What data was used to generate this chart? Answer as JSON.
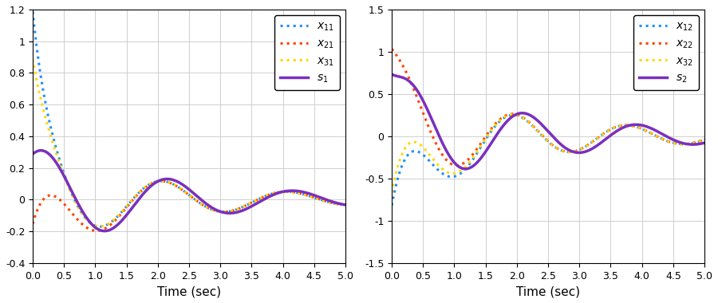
{
  "plot1": {
    "xlabel": "Time (sec)",
    "xlim": [
      0,
      5
    ],
    "ylim": [
      -0.4,
      1.2
    ],
    "yticks": [
      -0.4,
      -0.2,
      0,
      0.2,
      0.4,
      0.6,
      0.8,
      1.0,
      1.2
    ],
    "xticks": [
      0,
      0.5,
      1.0,
      1.5,
      2.0,
      2.5,
      3.0,
      3.5,
      4.0,
      4.5,
      5.0
    ],
    "legend": [
      "$x_{11}$",
      "$x_{21}$",
      "$x_{31}$",
      "$s_1$"
    ],
    "colors": [
      "#1e90ff",
      "#ff4500",
      "#ffd700",
      "#7b2fbe"
    ]
  },
  "plot2": {
    "xlabel": "Time (sec)",
    "xlim": [
      0,
      5
    ],
    "ylim": [
      -1.5,
      1.5
    ],
    "yticks": [
      -1.5,
      -1.0,
      -0.5,
      0,
      0.5,
      1.0,
      1.5
    ],
    "xticks": [
      0,
      0.5,
      1.0,
      1.5,
      2.0,
      2.5,
      3.0,
      3.5,
      4.0,
      4.5,
      5.0
    ],
    "legend": [
      "$x_{12}$",
      "$x_{22}$",
      "$x_{32}$",
      "$s_2$"
    ],
    "colors": [
      "#1e90ff",
      "#ff4500",
      "#ffd700",
      "#7b2fbe"
    ]
  }
}
